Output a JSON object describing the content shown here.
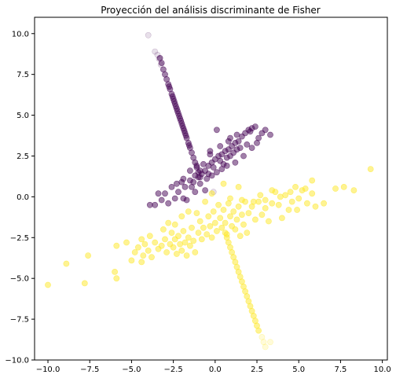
{
  "chart_data": {
    "type": "scatter",
    "title": "Proyección del análisis discriminante de Fisher",
    "xlabel": "",
    "ylabel": "",
    "xlim": [
      -10.8,
      10.3
    ],
    "ylim": [
      -10.0,
      11.0
    ],
    "xticks": [
      -10.0,
      -7.5,
      -5.0,
      -2.5,
      0.0,
      2.5,
      5.0,
      7.5,
      10.0
    ],
    "xtick_labels": [
      "−10.0",
      "−7.5",
      "−5.0",
      "−2.5",
      "0.0",
      "2.5",
      "5.0",
      "7.5",
      "10.0"
    ],
    "yticks": [
      -10.0,
      -7.5,
      -5.0,
      -2.5,
      0.0,
      2.5,
      5.0,
      7.5,
      10.0
    ],
    "ytick_labels": [
      "−10.0",
      "−7.5",
      "−5.0",
      "−2.5",
      "0.0",
      "2.5",
      "5.0",
      "7.5",
      "10.0"
    ],
    "grid": false,
    "legend": "none",
    "series": [
      {
        "color": "#440154",
        "points": [
          [
            -2.6,
            0.6
          ],
          [
            -2.3,
            0.8
          ],
          [
            -2.0,
            0.9
          ],
          [
            -1.8,
            0.6
          ],
          [
            -1.5,
            1.0
          ],
          [
            -1.3,
            0.9
          ],
          [
            -1.0,
            1.2
          ],
          [
            -0.8,
            1.4
          ],
          [
            -0.6,
            1.6
          ],
          [
            -0.4,
            1.9
          ],
          [
            -0.2,
            2.1
          ],
          [
            0.0,
            2.3
          ],
          [
            0.2,
            2.5
          ],
          [
            0.4,
            2.6
          ],
          [
            0.6,
            2.8
          ],
          [
            0.8,
            2.9
          ],
          [
            1.0,
            3.1
          ],
          [
            1.2,
            3.3
          ],
          [
            1.4,
            3.4
          ],
          [
            1.6,
            3.7
          ],
          [
            1.8,
            3.9
          ],
          [
            2.0,
            4.1
          ],
          [
            2.2,
            4.2
          ],
          [
            2.4,
            4.3
          ],
          [
            2.6,
            3.6
          ],
          [
            2.8,
            3.9
          ],
          [
            3.0,
            4.1
          ],
          [
            3.3,
            3.8
          ],
          [
            -1.5,
            1.6
          ],
          [
            -1.2,
            1.3
          ],
          [
            -0.9,
            1.6
          ],
          [
            -0.7,
            2.0
          ],
          [
            -0.4,
            1.4
          ],
          [
            -0.1,
            1.8
          ],
          [
            0.3,
            2.2
          ],
          [
            0.5,
            2.0
          ],
          [
            0.7,
            2.4
          ],
          [
            0.9,
            2.5
          ],
          [
            1.1,
            2.7
          ],
          [
            1.3,
            2.9
          ],
          [
            1.5,
            3.0
          ],
          [
            0.8,
            3.4
          ],
          [
            0.3,
            3.1
          ],
          [
            -0.3,
            2.6
          ],
          [
            -1.1,
            1.9
          ],
          [
            -1.9,
            1.1
          ],
          [
            -2.2,
            0.3
          ],
          [
            -3.0,
            0.2
          ],
          [
            -3.4,
            0.2
          ],
          [
            -2.8,
            -0.4
          ],
          [
            -3.2,
            -0.2
          ],
          [
            -3.6,
            -0.5
          ],
          [
            -3.9,
            -0.5
          ],
          [
            -2.4,
            -0.1
          ],
          [
            -1.7,
            -0.2
          ],
          [
            -1.4,
            0.6
          ],
          [
            -0.9,
            0.8
          ],
          [
            -0.5,
            1.1
          ],
          [
            -0.2,
            1.3
          ],
          [
            0.1,
            1.5
          ],
          [
            0.4,
            1.7
          ],
          [
            0.7,
            1.9
          ],
          [
            1.2,
            2.1
          ],
          [
            1.7,
            2.5
          ],
          [
            2.2,
            3.0
          ],
          [
            0.1,
            4.1
          ],
          [
            -0.6,
            0.4
          ],
          [
            -1.2,
            0.3
          ],
          [
            -1.9,
            -0.1
          ],
          [
            -0.3,
            2.8
          ],
          [
            1.9,
            3.2
          ],
          [
            2.5,
            3.3
          ],
          [
            2.1,
            4.0
          ],
          [
            1.3,
            3.8
          ],
          [
            0.9,
            3.6
          ],
          [
            -3.3,
            8.5
          ],
          [
            -3.2,
            8.2
          ],
          [
            -3.1,
            7.8
          ],
          [
            -3.0,
            7.5
          ],
          [
            -2.9,
            7.2
          ],
          [
            -2.8,
            6.9
          ],
          [
            -2.7,
            6.6
          ],
          [
            -2.6,
            6.3
          ],
          [
            -2.5,
            6.0
          ],
          [
            -2.4,
            5.7
          ],
          [
            -2.3,
            5.4
          ],
          [
            -2.2,
            5.1
          ],
          [
            -2.1,
            4.8
          ],
          [
            -2.0,
            4.5
          ],
          [
            -1.9,
            4.2
          ],
          [
            -1.8,
            3.9
          ],
          [
            -1.7,
            3.6
          ],
          [
            -1.6,
            3.3
          ],
          [
            -1.5,
            3.0
          ],
          [
            -1.4,
            2.7
          ],
          [
            -1.3,
            2.4
          ],
          [
            -1.2,
            2.1
          ],
          [
            -1.1,
            1.8
          ],
          [
            -1.0,
            1.5
          ],
          [
            -0.9,
            1.2
          ],
          [
            -2.55,
            6.15
          ],
          [
            -2.35,
            5.55
          ],
          [
            -2.15,
            4.95
          ],
          [
            -1.95,
            4.35
          ],
          [
            -1.75,
            3.75
          ],
          [
            -1.55,
            3.15
          ],
          [
            -2.75,
            6.75
          ],
          [
            -2.45,
            5.85
          ],
          [
            -2.25,
            5.25
          ],
          [
            -2.05,
            4.65
          ],
          [
            -1.85,
            4.05
          ]
        ]
      },
      {
        "color": "#440154",
        "opacity": 0.12,
        "points": [
          [
            -4.0,
            9.9
          ],
          [
            -3.6,
            8.9
          ],
          [
            -3.45,
            8.7
          ],
          [
            -3.35,
            8.45
          ],
          [
            -3.25,
            8.1
          ],
          [
            -0.1,
            0.3
          ]
        ]
      },
      {
        "color": "#fde725",
        "points": [
          [
            -10.0,
            -5.4
          ],
          [
            -8.9,
            -4.1
          ],
          [
            -7.8,
            -5.3
          ],
          [
            -7.6,
            -3.6
          ],
          [
            -6.0,
            -4.6
          ],
          [
            -5.9,
            -5.0
          ],
          [
            -5.9,
            -3.0
          ],
          [
            -5.0,
            -3.9
          ],
          [
            -4.8,
            -3.4
          ],
          [
            -4.6,
            -3.1
          ],
          [
            -4.4,
            -4.0
          ],
          [
            -4.3,
            -3.6
          ],
          [
            -4.2,
            -2.9
          ],
          [
            -4.0,
            -3.3
          ],
          [
            -3.8,
            -3.7
          ],
          [
            -3.6,
            -2.8
          ],
          [
            -3.4,
            -3.2
          ],
          [
            -3.2,
            -3.0
          ],
          [
            -3.0,
            -2.6
          ],
          [
            -2.9,
            -3.4
          ],
          [
            -2.7,
            -2.9
          ],
          [
            -2.6,
            -2.2
          ],
          [
            -2.5,
            -3.1
          ],
          [
            -2.4,
            -2.6
          ],
          [
            -2.3,
            -3.5
          ],
          [
            -2.2,
            -2.4
          ],
          [
            -2.1,
            -2.9
          ],
          [
            -2.0,
            -3.3
          ],
          [
            -1.9,
            -2.1
          ],
          [
            -1.8,
            -2.8
          ],
          [
            -1.7,
            -3.6
          ],
          [
            -1.6,
            -2.5
          ],
          [
            -1.5,
            -3.0
          ],
          [
            -1.4,
            -1.9
          ],
          [
            -1.3,
            -2.7
          ],
          [
            -1.2,
            -3.4
          ],
          [
            -1.0,
            -2.2
          ],
          [
            -0.9,
            -1.5
          ],
          [
            -0.8,
            -2.6
          ],
          [
            -0.7,
            -1.9
          ],
          [
            -0.5,
            -2.3
          ],
          [
            -0.4,
            -1.2
          ],
          [
            -0.3,
            -1.8
          ],
          [
            -0.2,
            -2.5
          ],
          [
            -0.1,
            -0.9
          ],
          [
            0.0,
            -1.6
          ],
          [
            0.1,
            -2.1
          ],
          [
            0.2,
            -0.5
          ],
          [
            0.3,
            -1.3
          ],
          [
            0.4,
            -1.9
          ],
          [
            0.5,
            -0.8
          ],
          [
            0.6,
            -1.6
          ],
          [
            0.7,
            -2.3
          ],
          [
            0.8,
            -0.4
          ],
          [
            0.9,
            -1.2
          ],
          [
            1.0,
            -1.8
          ],
          [
            1.1,
            -0.9
          ],
          [
            1.2,
            -2.0
          ],
          [
            1.3,
            -1.4
          ],
          [
            1.4,
            -0.6
          ],
          [
            1.5,
            -2.4
          ],
          [
            1.6,
            -1.1
          ],
          [
            1.7,
            -1.7
          ],
          [
            1.8,
            -0.3
          ],
          [
            1.9,
            -2.2
          ],
          [
            2.0,
            -1.0
          ],
          [
            2.2,
            -0.6
          ],
          [
            2.4,
            -1.4
          ],
          [
            2.6,
            -0.3
          ],
          [
            2.8,
            -1.1
          ],
          [
            3.0,
            -0.7
          ],
          [
            3.2,
            -1.5
          ],
          [
            3.4,
            -0.4
          ],
          [
            3.6,
            0.3
          ],
          [
            3.8,
            -0.5
          ],
          [
            4.0,
            -1.3
          ],
          [
            4.2,
            0.1
          ],
          [
            4.4,
            -0.8
          ],
          [
            4.6,
            -0.3
          ],
          [
            4.8,
            0.6
          ],
          [
            5.0,
            -0.1
          ],
          [
            5.2,
            0.4
          ],
          [
            5.5,
            -0.4
          ],
          [
            5.8,
            0.2
          ],
          [
            6.0,
            -0.6
          ],
          [
            6.5,
            -0.4
          ],
          [
            7.2,
            0.5
          ],
          [
            7.7,
            0.6
          ],
          [
            8.3,
            0.4
          ],
          [
            9.3,
            1.7
          ],
          [
            5.8,
            1.0
          ],
          [
            3.4,
            0.4
          ],
          [
            3.0,
            -0.2
          ],
          [
            2.7,
            0.1
          ],
          [
            2.3,
            -0.3
          ],
          [
            1.6,
            -0.2
          ],
          [
            0.9,
            -0.1
          ],
          [
            -0.6,
            -0.3
          ],
          [
            -1.1,
            -1.0
          ],
          [
            -2.0,
            -1.2
          ],
          [
            -3.1,
            -2.0
          ],
          [
            -4.4,
            -2.6
          ],
          [
            -5.3,
            -2.8
          ],
          [
            -3.9,
            -2.4
          ],
          [
            -2.8,
            -1.6
          ],
          [
            4.9,
            -0.8
          ],
          [
            5.4,
            0.5
          ],
          [
            4.5,
            0.3
          ],
          [
            3.9,
            0.0
          ],
          [
            1.4,
            0.6
          ],
          [
            0.5,
            0.8
          ],
          [
            -0.2,
            0.2
          ],
          [
            -1.6,
            -0.9
          ],
          [
            -2.4,
            -1.7
          ],
          [
            0.8,
            -2.8
          ],
          [
            1.0,
            -3.4
          ],
          [
            1.2,
            -4.0
          ],
          [
            1.4,
            -4.6
          ],
          [
            1.6,
            -5.2
          ],
          [
            1.8,
            -5.8
          ],
          [
            2.0,
            -6.4
          ],
          [
            2.2,
            -7.0
          ],
          [
            2.4,
            -7.6
          ],
          [
            2.6,
            -8.2
          ],
          [
            0.9,
            -3.1
          ],
          [
            1.1,
            -3.7
          ],
          [
            1.3,
            -4.3
          ],
          [
            1.5,
            -4.9
          ],
          [
            1.7,
            -5.5
          ],
          [
            1.9,
            -6.1
          ],
          [
            2.1,
            -6.7
          ],
          [
            2.3,
            -7.3
          ],
          [
            2.5,
            -7.9
          ],
          [
            0.7,
            -2.5
          ],
          [
            0.6,
            -2.2
          ]
        ]
      },
      {
        "color": "#fde725",
        "opacity": 0.18,
        "points": [
          [
            2.8,
            -8.6
          ],
          [
            2.9,
            -8.9
          ],
          [
            3.0,
            -9.2
          ],
          [
            3.3,
            -8.9
          ]
        ]
      }
    ]
  }
}
